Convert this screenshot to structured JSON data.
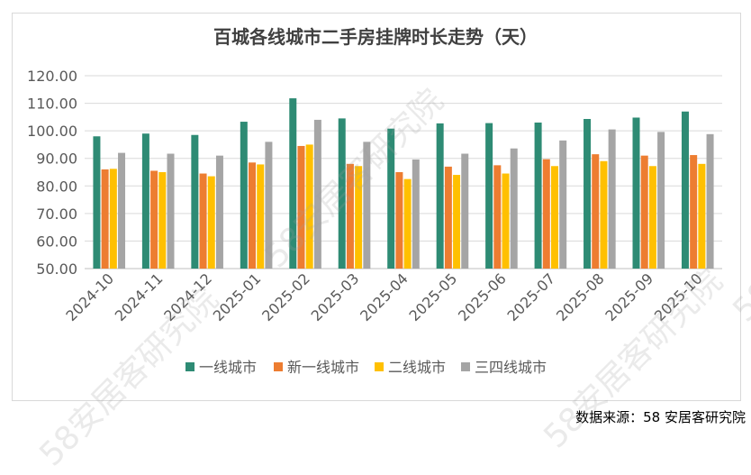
{
  "chart_data": {
    "type": "bar",
    "title": "百城各线城市二手房挂牌时长走势（天）",
    "categories": [
      "2024-10",
      "2024-11",
      "2024-12",
      "2025-01",
      "2025-02",
      "2025-03",
      "2025-04",
      "2025-05",
      "2025-06",
      "2025-07",
      "2025-08",
      "2025-09",
      "2025-10"
    ],
    "series": [
      {
        "name": "一线城市",
        "color": "#2e8b74",
        "values": [
          98.0,
          99.0,
          98.5,
          103.3,
          111.8,
          104.5,
          100.8,
          102.7,
          102.8,
          103.0,
          104.3,
          104.8,
          107.0
        ]
      },
      {
        "name": "新一线城市",
        "color": "#ed7d31",
        "values": [
          86.0,
          85.5,
          84.5,
          88.5,
          94.5,
          88.0,
          85.0,
          87.0,
          87.5,
          89.7,
          91.5,
          91.0,
          91.2
        ]
      },
      {
        "name": "二线城市",
        "color": "#ffc000",
        "values": [
          86.2,
          85.0,
          83.5,
          87.8,
          95.0,
          87.2,
          82.5,
          84.0,
          84.5,
          87.2,
          89.0,
          87.2,
          88.0
        ]
      },
      {
        "name": "三四线城市",
        "color": "#a5a5a5",
        "values": [
          92.0,
          91.7,
          91.0,
          96.0,
          104.0,
          96.0,
          89.6,
          91.7,
          93.6,
          96.5,
          100.5,
          99.6,
          98.8
        ]
      }
    ],
    "ylim": [
      50,
      120
    ],
    "yticks": [
      "50.00",
      "60.00",
      "70.00",
      "80.00",
      "90.00",
      "100.00",
      "110.00",
      "120.00"
    ],
    "grid": true,
    "legend_position": "bottom"
  },
  "source": "数据来源：58 安居客研究院",
  "watermark": "58安居客研究院"
}
